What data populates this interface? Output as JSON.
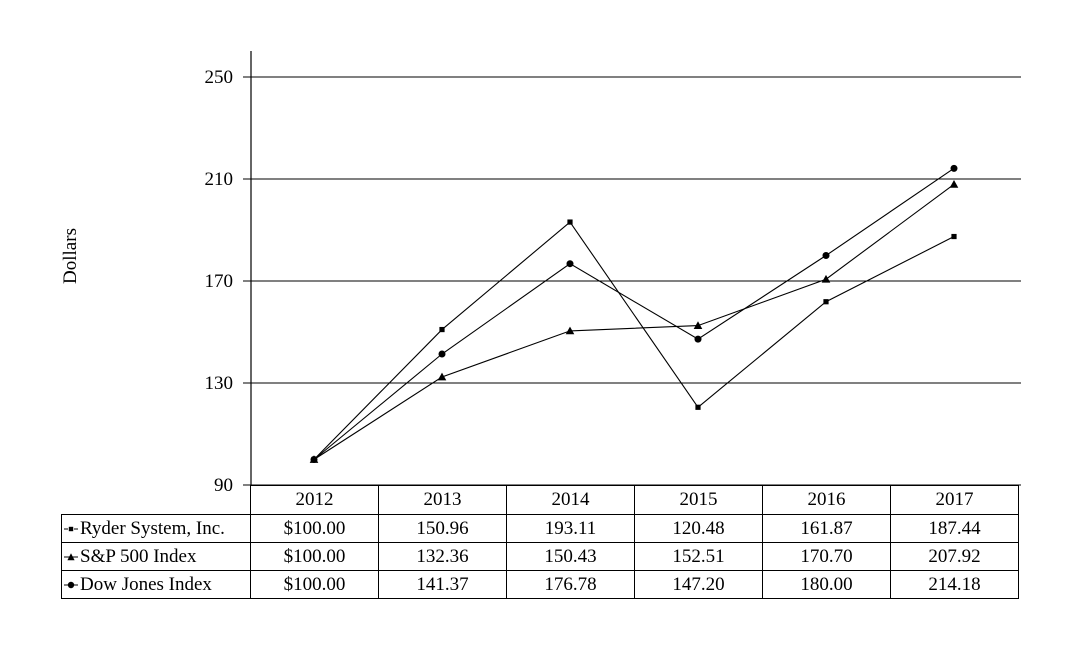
{
  "chart_data": {
    "type": "line",
    "title": "",
    "xlabel": "",
    "ylabel": "Dollars",
    "categories": [
      "2012",
      "2013",
      "2014",
      "2015",
      "2016",
      "2017"
    ],
    "yticks": [
      250,
      210,
      170,
      130,
      90
    ],
    "ylim": [
      90,
      250
    ],
    "grid": "horizontal-gridlines-on",
    "legend_position": "table-left",
    "line_color": "#000000",
    "series": [
      {
        "name": "Ryder System, Inc.",
        "marker": "square",
        "values": [
          100.0,
          150.96,
          193.11,
          120.48,
          161.87,
          187.44
        ]
      },
      {
        "name": "S&P 500 Index",
        "marker": "triangle",
        "values": [
          100.0,
          132.36,
          150.43,
          152.51,
          170.7,
          207.92
        ]
      },
      {
        "name": "Dow Jones Index",
        "marker": "circle",
        "values": [
          100.0,
          141.37,
          176.78,
          147.2,
          180.0,
          214.18
        ]
      }
    ]
  },
  "table": {
    "rows": [
      {
        "cells": [
          "$100.00",
          "150.96",
          "193.11",
          "120.48",
          "161.87",
          "187.44"
        ]
      },
      {
        "cells": [
          "$100.00",
          "132.36",
          "150.43",
          "152.51",
          "170.70",
          "207.92"
        ]
      },
      {
        "cells": [
          "$100.00",
          "141.37",
          "176.78",
          "147.20",
          "180.00",
          "214.18"
        ]
      }
    ]
  }
}
